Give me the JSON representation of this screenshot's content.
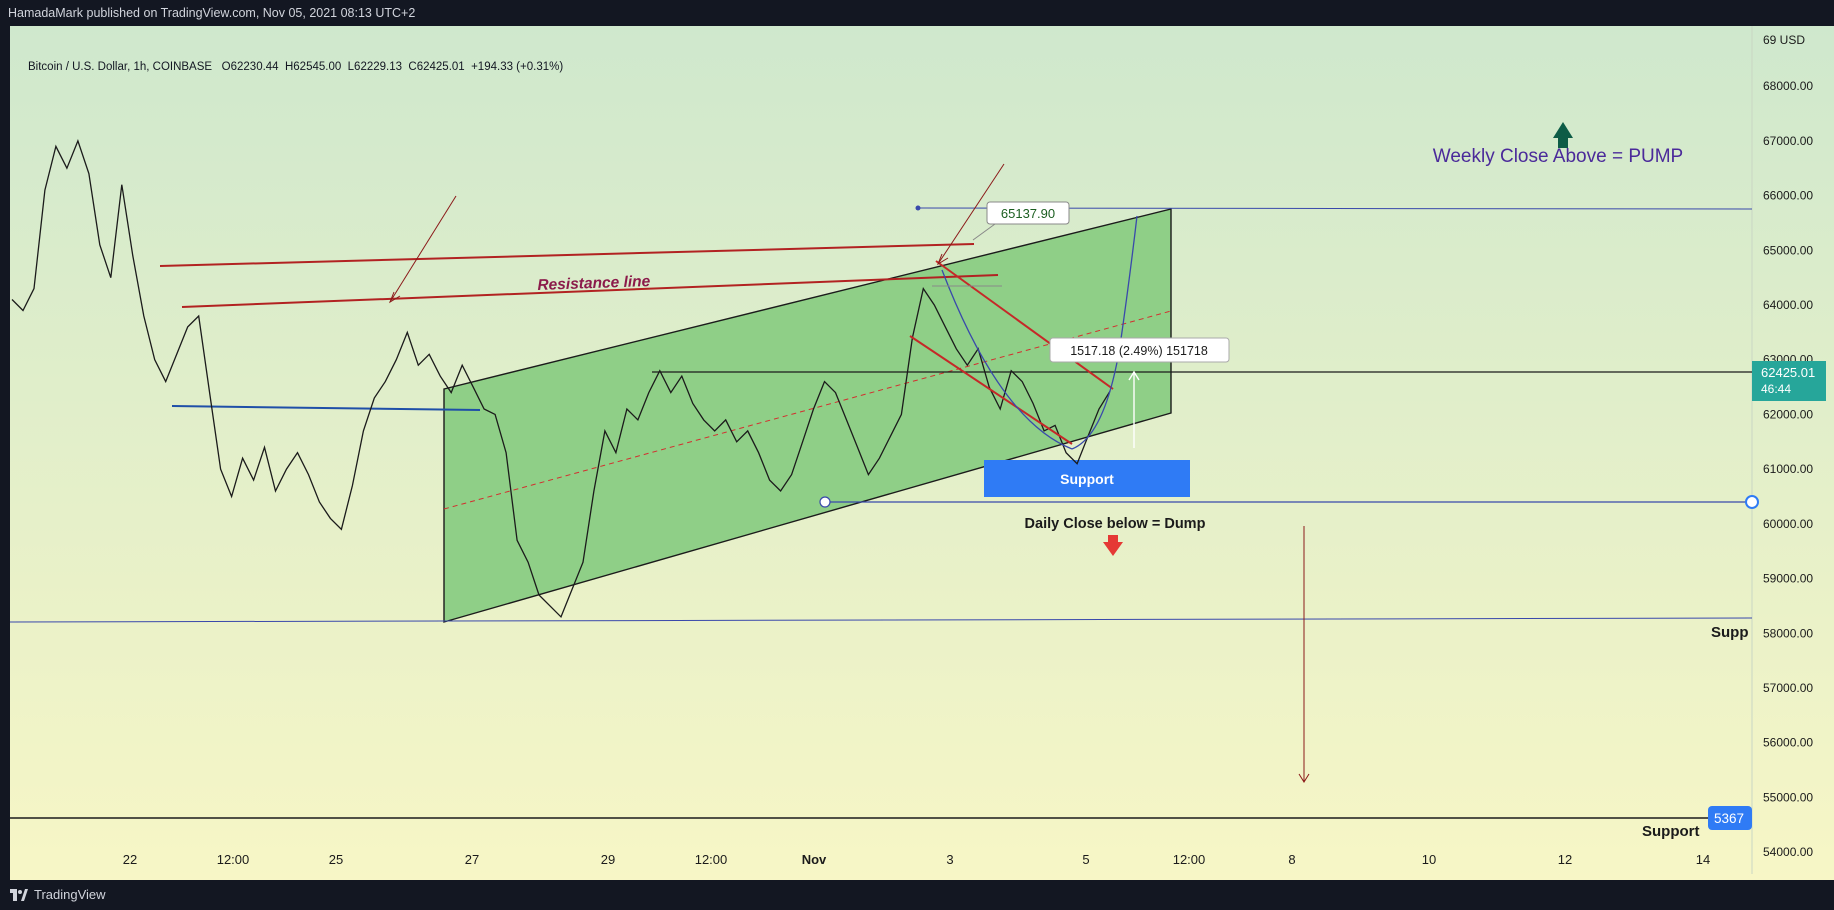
{
  "header": {
    "published": "HamadaMark published on TradingView.com, Nov 05, 2021 08:13 UTC+2"
  },
  "footer": {
    "brand": "TradingView"
  },
  "chart_data": {
    "type": "line",
    "symbol_line": "Bitcoin / U.S. Dollar, 1h, COINBASE",
    "ohlc": {
      "open": "O62230.44",
      "high": "H62545.00",
      "low": "L62229.13",
      "close": "C62425.01",
      "change": "+194.33 (+0.31%)"
    },
    "currency_label": "69 USD",
    "y_ticks": [
      "68000.00",
      "67000.00",
      "66000.00",
      "65000.00",
      "64000.00",
      "63000.00",
      "62000.00",
      "61000.00",
      "60000.00",
      "59000.00",
      "58000.00",
      "57000.00",
      "56000.00",
      "55000.00",
      "54000.00"
    ],
    "y_tick_values": [
      68000,
      67000,
      66000,
      65000,
      64000,
      63000,
      62000,
      61000,
      60000,
      59000,
      58000,
      57000,
      56000,
      55000,
      54000
    ],
    "ylim": [
      53600,
      69100
    ],
    "x_ticks": [
      "22",
      "12:00",
      "25",
      "27",
      "29",
      "12:00",
      "Nov",
      "3",
      "5",
      "12:00",
      "8",
      "10",
      "12",
      "14"
    ],
    "last_price": {
      "value": "62425.01",
      "countdown": "46:44",
      "color": "#26a69a"
    },
    "price_series": [
      64100,
      63900,
      64300,
      66100,
      66900,
      66500,
      67000,
      66400,
      65100,
      64500,
      66200,
      64900,
      63800,
      63000,
      62600,
      63100,
      63600,
      63800,
      62400,
      61000,
      60500,
      61200,
      60800,
      61400,
      60600,
      61000,
      61300,
      60900,
      60400,
      60100,
      59900,
      60700,
      61700,
      62300,
      62600,
      63000,
      63500,
      62900,
      63100,
      62700,
      62400,
      62900,
      62500,
      62100,
      62000,
      61300,
      59700,
      59300,
      58700,
      58500,
      58300,
      58800,
      59300,
      60600,
      61700,
      61300,
      62100,
      61900,
      62400,
      62800,
      62400,
      62700,
      62200,
      61900,
      61700,
      61900,
      61500,
      61700,
      61300,
      60800,
      60600,
      60900,
      61500,
      62100,
      62600,
      62400,
      61900,
      61400,
      60900,
      61200,
      61600,
      62000,
      63400,
      64300,
      64000,
      63600,
      63200,
      62900,
      63200,
      62500,
      62100,
      62800,
      62600,
      62200,
      61700,
      61800,
      61300,
      61100,
      61600,
      62100,
      62425
    ],
    "annotations": {
      "resistance_label": "Resistance line",
      "weekly_text": "Weekly Close Above = PUMP",
      "daily_text": "Daily Close below = Dump",
      "support_box": "Support",
      "support_label_1": "Supp",
      "support_label_2": "Support",
      "price_callout": "65137.90",
      "measure_callout": "1517.18 (2.49%) 151718",
      "support_tag": "5367"
    },
    "colors": {
      "bg_top": "#cfe8cd",
      "bg_bottom": "#f7f6c6",
      "channel_fill": "#8fcf87",
      "resistance": "#b22222",
      "support_blue": "#1f4fa8",
      "support_box": "#2f7bf5",
      "pump_arrow": "#0d5c46",
      "dump_arrow": "#e53935",
      "weekly_text": "#4b2a9a"
    }
  }
}
